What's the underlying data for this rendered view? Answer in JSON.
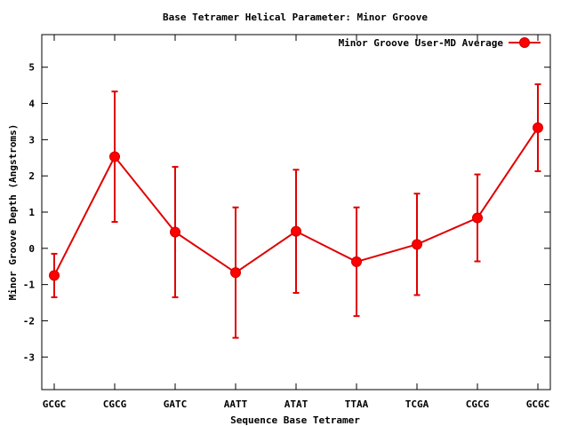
{
  "chart_data": {
    "type": "line",
    "title": "Base Tetramer Helical Parameter: Minor Groove",
    "xlabel": "Sequence Base Tetramer",
    "ylabel": "Minor Groove Depth (Angstroms)",
    "categories": [
      "GCGC",
      "CGCG",
      "GATC",
      "AATT",
      "ATAT",
      "TTAA",
      "TCGA",
      "CGCG",
      "GCGC"
    ],
    "ylim": [
      -3.9,
      5.9
    ],
    "yticks": [
      -3,
      -2,
      -1,
      0,
      1,
      2,
      3,
      4,
      5
    ],
    "ytick_labels": [
      "-3",
      "-2",
      "-1",
      "0",
      "1",
      "2",
      "3",
      "4",
      "5"
    ],
    "grid": false,
    "legend_position": "top-right",
    "series": [
      {
        "name": "Minor Groove User-MD Average",
        "color": "#ff0000",
        "values": [
          -0.75,
          2.53,
          0.45,
          -0.67,
          0.47,
          -0.37,
          0.11,
          0.84,
          3.33
        ],
        "error_low": [
          -1.35,
          0.73,
          -1.35,
          -2.47,
          -1.23,
          -1.87,
          -1.29,
          -0.36,
          2.13
        ],
        "error_high": [
          -0.15,
          4.33,
          2.25,
          1.13,
          2.17,
          1.13,
          1.51,
          2.04,
          4.53
        ]
      }
    ]
  }
}
